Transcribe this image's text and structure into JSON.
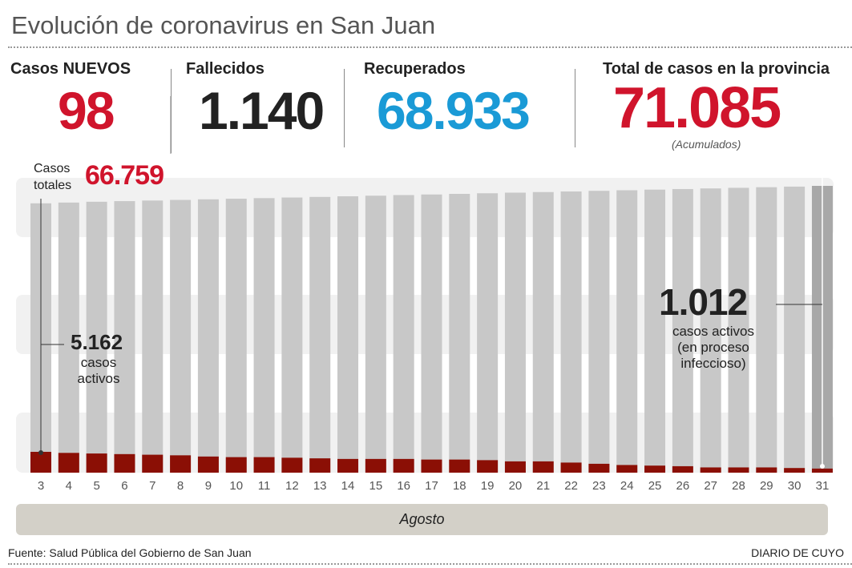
{
  "title": "Evolución de coronavirus en San Juan",
  "stats": {
    "nuevos": {
      "label": "Casos NUEVOS",
      "value": "98"
    },
    "fallecidos": {
      "label": "Fallecidos",
      "value": "1.140"
    },
    "recuperados": {
      "label": "Recuperados",
      "value": "68.933"
    },
    "total": {
      "label": "Total de casos en la provincia",
      "value": "71.085",
      "note": "(Acumulados)"
    }
  },
  "colors": {
    "red": "#d0142c",
    "blue": "#1a9ad6",
    "dark": "#222222",
    "active": "#8b0f05",
    "total_bar": "#c8c8c8",
    "last_bar": "#a8a8a8",
    "band": "#f1f1f1",
    "month_bar": "#d3d0c8"
  },
  "annotations": {
    "casos_totales_label_1": "Casos",
    "casos_totales_label_2": "totales",
    "casos_totales_value": "66.759",
    "start_active_value": "5.162",
    "start_active_l1": "casos",
    "start_active_l2": "activos",
    "end_active_value": "1.012",
    "end_active_l1": "casos activos",
    "end_active_l2": "(en proceso",
    "end_active_l3": "infeccioso)"
  },
  "footer": {
    "source": "Fuente: Salud Pública del Gobierno de San Juan",
    "brand": "DIARIO DE CUYO"
  },
  "chart_data": {
    "type": "bar",
    "title": "Evolución de coronavirus en San Juan",
    "xlabel": "Agosto",
    "categories": [
      "3",
      "4",
      "5",
      "6",
      "7",
      "8",
      "9",
      "10",
      "11",
      "12",
      "13",
      "14",
      "15",
      "16",
      "17",
      "18",
      "19",
      "20",
      "21",
      "22",
      "23",
      "24",
      "25",
      "26",
      "27",
      "28",
      "29",
      "30",
      "31"
    ],
    "series": [
      {
        "name": "Casos totales",
        "values": [
          66759,
          66950,
          67150,
          67300,
          67450,
          67600,
          67750,
          67900,
          68050,
          68200,
          68350,
          68500,
          68650,
          68800,
          68950,
          69100,
          69250,
          69400,
          69550,
          69700,
          69850,
          70000,
          70150,
          70300,
          70450,
          70600,
          70750,
          70900,
          71085
        ]
      },
      {
        "name": "Casos activos",
        "values": [
          5162,
          4900,
          4750,
          4600,
          4450,
          4300,
          4000,
          3850,
          3850,
          3700,
          3550,
          3400,
          3400,
          3400,
          3250,
          3250,
          3100,
          2800,
          2800,
          2500,
          2200,
          1900,
          1750,
          1600,
          1300,
          1300,
          1300,
          1150,
          1012
        ]
      }
    ],
    "ylim": [
      0,
      72000
    ]
  }
}
